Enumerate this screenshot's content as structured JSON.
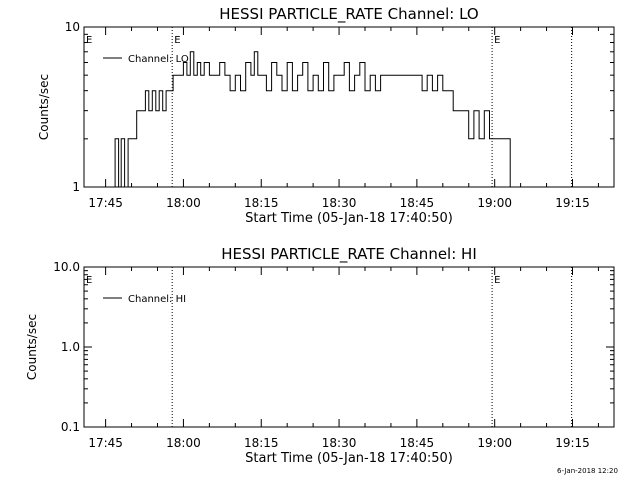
{
  "chart_data": [
    {
      "type": "line",
      "title": "HESSI PARTICLE_RATE Channel: LO",
      "xlabel": "Start Time (05-Jan-18 17:40:50)",
      "ylabel": "Counts/sec",
      "y_scale": "log",
      "ylim": [
        1,
        10
      ],
      "y_ticks": [
        {
          "value": 1,
          "label": "1"
        },
        {
          "value": 10,
          "label": "10"
        }
      ],
      "xlim": [
        "17:40:50",
        "19:23:00"
      ],
      "x_ticks": [
        {
          "time": "17:45",
          "label": "17:45"
        },
        {
          "time": "18:00",
          "label": "18:00"
        },
        {
          "time": "18:15",
          "label": "18:15"
        },
        {
          "time": "18:30",
          "label": "18:30"
        },
        {
          "time": "18:45",
          "label": "18:45"
        },
        {
          "time": "19:00",
          "label": "19:00"
        },
        {
          "time": "19:15",
          "label": "19:15"
        }
      ],
      "vlines": [
        {
          "time": "17:57:50",
          "mark": "E"
        },
        {
          "time": "18:59:30",
          "mark": "E"
        },
        {
          "time": "19:14:50",
          "mark": ""
        }
      ],
      "corner_mark": "E",
      "legend": "top-left",
      "series": [
        {
          "name": "Channel: LO",
          "x": [
            "17:46:10",
            "17:46:50",
            "17:47:30",
            "17:48:00",
            "17:48:40",
            "17:49:20",
            "17:50:00",
            "17:51:00",
            "17:52:00",
            "17:52:40",
            "17:53:20",
            "17:54:00",
            "17:54:40",
            "17:55:20",
            "17:56:00",
            "17:56:40",
            "17:57:20",
            "17:58:00",
            "17:59:00",
            "18:00:00",
            "18:00:40",
            "18:01:20",
            "18:02:00",
            "18:02:40",
            "18:03:20",
            "18:04:00",
            "18:05:00",
            "18:06:00",
            "18:07:00",
            "18:08:00",
            "18:09:00",
            "18:10:00",
            "18:11:00",
            "18:12:00",
            "18:13:00",
            "18:13:40",
            "18:14:20",
            "18:15:00",
            "18:16:00",
            "18:17:00",
            "18:18:00",
            "18:19:00",
            "18:20:00",
            "18:21:00",
            "18:22:00",
            "18:23:00",
            "18:24:00",
            "18:25:00",
            "18:26:00",
            "18:27:00",
            "18:28:00",
            "18:29:00",
            "18:30:00",
            "18:31:00",
            "18:32:00",
            "18:33:00",
            "18:34:00",
            "18:35:00",
            "18:36:00",
            "18:37:00",
            "18:38:00",
            "18:39:00",
            "18:40:00",
            "18:41:00",
            "18:42:00",
            "18:43:00",
            "18:44:00",
            "18:45:00",
            "18:46:00",
            "18:47:00",
            "18:48:00",
            "18:49:00",
            "18:50:00",
            "18:51:00",
            "18:52:00",
            "18:53:00",
            "18:54:00",
            "18:55:00",
            "18:56:00",
            "18:57:00",
            "18:58:00",
            "18:59:00",
            "19:00:00",
            "19:01:00",
            "19:02:00",
            "19:03:00"
          ],
          "y": [
            1,
            2,
            1,
            2,
            1,
            2,
            2,
            3,
            3,
            4,
            3,
            4,
            3,
            4,
            3,
            4,
            4,
            5,
            5,
            6,
            5,
            7,
            5,
            6,
            5,
            6,
            5,
            5,
            6,
            5,
            4,
            5,
            4,
            6,
            5,
            7,
            5,
            5,
            4,
            6,
            5,
            4,
            6,
            4,
            5,
            6,
            4,
            5,
            4,
            6,
            4,
            5,
            5,
            6,
            4,
            5,
            6,
            4,
            5,
            4,
            5,
            5,
            5,
            5,
            5,
            5,
            5,
            5,
            4,
            5,
            4,
            5,
            4,
            4,
            3,
            3,
            3,
            2,
            3,
            2,
            3,
            2,
            2,
            2,
            2,
            1
          ]
        }
      ]
    },
    {
      "type": "line",
      "title": "HESSI PARTICLE_RATE Channel: HI",
      "xlabel": "Start Time (05-Jan-18 17:40:50)",
      "ylabel": "Counts/sec",
      "y_scale": "log",
      "ylim": [
        0.1,
        10
      ],
      "y_ticks": [
        {
          "value": 0.1,
          "label": "0.1"
        },
        {
          "value": 1,
          "label": "1.0"
        },
        {
          "value": 10,
          "label": "10.0"
        }
      ],
      "xlim": [
        "17:40:50",
        "19:23:00"
      ],
      "x_ticks": [
        {
          "time": "17:45",
          "label": "17:45"
        },
        {
          "time": "18:00",
          "label": "18:00"
        },
        {
          "time": "18:15",
          "label": "18:15"
        },
        {
          "time": "18:30",
          "label": "18:30"
        },
        {
          "time": "18:45",
          "label": "18:45"
        },
        {
          "time": "19:00",
          "label": "19:00"
        },
        {
          "time": "19:15",
          "label": "19:15"
        }
      ],
      "vlines": [
        {
          "time": "17:57:50",
          "mark": ""
        },
        {
          "time": "18:59:30",
          "mark": "E"
        },
        {
          "time": "19:14:50",
          "mark": ""
        }
      ],
      "corner_mark": "E",
      "legend": "top-left",
      "series": [
        {
          "name": "Channel: HI",
          "x": [],
          "y": []
        }
      ]
    }
  ],
  "footer": {
    "timestamp": "6-Jan-2018 12:20"
  }
}
